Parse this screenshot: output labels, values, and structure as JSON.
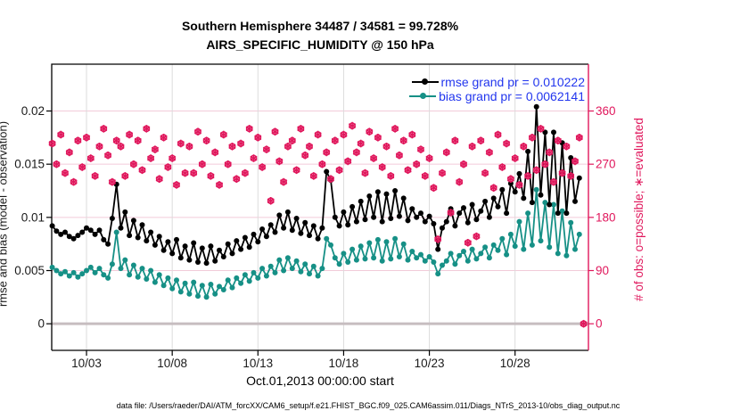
{
  "chart_data": {
    "type": "line",
    "title": "Southern Hemisphere 34487 / 34581 = 99.728%",
    "subtitle": "AIRS_SPECIFIC_HUMIDITY @ 150 hPa",
    "x_axis": {
      "lim": [
        0.97,
        32.28
      ],
      "ticks": [
        3,
        8,
        13,
        18,
        23,
        28
      ],
      "tick_labels": [
        "10/03",
        "10/08",
        "10/13",
        "10/18",
        "10/23",
        "10/28"
      ],
      "label": "Oct.01,2013 00:00:00 start"
    },
    "left_axis": {
      "lim": [
        -0.0025,
        0.0244
      ],
      "ticks": [
        0,
        0.005,
        0.01,
        0.015,
        0.02
      ],
      "tick_labels": [
        "0",
        "0.005",
        "0.01",
        "0.015",
        "0.02"
      ],
      "label": "rmse and bias (model - observation)"
    },
    "right_axis": {
      "lim": [
        -45,
        439.2
      ],
      "ticks": [
        0,
        90,
        180,
        270,
        360
      ],
      "tick_labels": [
        "0",
        "90",
        "180",
        "270",
        "360"
      ],
      "label": "# of obs: o=possible; ∗=evaluated",
      "color": "#E0175C"
    },
    "legend": [
      {
        "label": "rmse grand pr = 0.010222",
        "series": "rmse",
        "color": "#000000"
      },
      {
        "label": "bias grand pr = 0.0062141",
        "series": "bias",
        "color": "#169086"
      }
    ],
    "legend_text_color": "#2236EE",
    "grid": {
      "vertical_color": "#DCDCDC",
      "horizontal_color": "#F2CBD9",
      "zero_line_color": "#C6BDC0"
    },
    "x_start": 1.0,
    "x_step": 0.25,
    "obs_counts": [
      305,
      270,
      320,
      255,
      290,
      240,
      310,
      265,
      315,
      280,
      250,
      300,
      330,
      285,
      240,
      310,
      300,
      250,
      320,
      270,
      310,
      260,
      330,
      280,
      295,
      245,
      315,
      265,
      280,
      235,
      305,
      255,
      300,
      255,
      325,
      270,
      310,
      250,
      290,
      235,
      320,
      270,
      300,
      245,
      305,
      255,
      330,
      280,
      315,
      265,
      295,
      208,
      325,
      275,
      240,
      300,
      310,
      260,
      330,
      285,
      300,
      250,
      320,
      270,
      290,
      245,
      310,
      260,
      320,
      275,
      335,
      290,
      305,
      255,
      325,
      280,
      315,
      265,
      300,
      250,
      330,
      285,
      310,
      260,
      320,
      270,
      295,
      250,
      280,
      230,
      143,
      255,
      290,
      188,
      310,
      240,
      270,
      137,
      300,
      148,
      310,
      255,
      290,
      230,
      320,
      265,
      305,
      245,
      280,
      235,
      300,
      250,
      315,
      260,
      330,
      270,
      290,
      240,
      310,
      255,
      300,
      250,
      275,
      315,
      0
    ],
    "series": [
      {
        "name": "bias",
        "axis": "left",
        "color": "#169086",
        "marker": "dot",
        "values": [
          0.0053,
          0.005,
          0.0047,
          0.0049,
          0.0045,
          0.0048,
          0.0044,
          0.0047,
          0.005,
          0.0053,
          0.0048,
          0.0052,
          0.0046,
          0.0043,
          0.0056,
          0.0086,
          0.0052,
          0.006,
          0.0046,
          0.0055,
          0.0044,
          0.0052,
          0.0042,
          0.005,
          0.0039,
          0.0046,
          0.0036,
          0.0043,
          0.0033,
          0.0041,
          0.003,
          0.0038,
          0.0028,
          0.0039,
          0.0026,
          0.0036,
          0.0025,
          0.0037,
          0.0028,
          0.0035,
          0.0032,
          0.0041,
          0.0034,
          0.0043,
          0.0038,
          0.0046,
          0.004,
          0.0048,
          0.0043,
          0.0052,
          0.0045,
          0.0054,
          0.0048,
          0.006,
          0.005,
          0.0062,
          0.0052,
          0.0059,
          0.0049,
          0.0056,
          0.0047,
          0.0054,
          0.0045,
          0.0052,
          0.008,
          0.0074,
          0.0062,
          0.0056,
          0.0066,
          0.0058,
          0.007,
          0.006,
          0.0073,
          0.0061,
          0.0076,
          0.0062,
          0.0079,
          0.0059,
          0.0077,
          0.0061,
          0.008,
          0.0063,
          0.0075,
          0.006,
          0.0068,
          0.0062,
          0.0065,
          0.0059,
          0.0063,
          0.0058,
          0.0047,
          0.0055,
          0.0059,
          0.0066,
          0.0056,
          0.0064,
          0.0068,
          0.0059,
          0.007,
          0.0061,
          0.0066,
          0.0072,
          0.0062,
          0.0074,
          0.0069,
          0.008,
          0.0065,
          0.0084,
          0.0073,
          0.0096,
          0.007,
          0.0104,
          0.0074,
          0.0126,
          0.0078,
          0.0114,
          0.0072,
          0.0112,
          0.0066,
          0.0106,
          0.0064,
          0.0095,
          0.007,
          0.0084
        ]
      },
      {
        "name": "rmse",
        "axis": "left",
        "color": "#000000",
        "marker": "dot",
        "values": [
          0.0092,
          0.0087,
          0.0084,
          0.0086,
          0.0082,
          0.008,
          0.0083,
          0.0086,
          0.009,
          0.0088,
          0.0084,
          0.0088,
          0.0079,
          0.0075,
          0.0099,
          0.0131,
          0.009,
          0.0105,
          0.0083,
          0.0097,
          0.0081,
          0.0093,
          0.0078,
          0.0086,
          0.0074,
          0.0082,
          0.0069,
          0.0077,
          0.0066,
          0.0079,
          0.0062,
          0.0073,
          0.006,
          0.0076,
          0.0058,
          0.0071,
          0.0057,
          0.0073,
          0.0059,
          0.0069,
          0.0063,
          0.0075,
          0.0066,
          0.0078,
          0.007,
          0.0081,
          0.0072,
          0.0084,
          0.0077,
          0.0089,
          0.0082,
          0.0093,
          0.0086,
          0.0102,
          0.009,
          0.0105,
          0.0088,
          0.0099,
          0.0085,
          0.0095,
          0.0083,
          0.0092,
          0.008,
          0.009,
          0.0143,
          0.0135,
          0.01,
          0.0092,
          0.0105,
          0.0093,
          0.011,
          0.0096,
          0.0115,
          0.0098,
          0.012,
          0.01,
          0.0124,
          0.0096,
          0.0122,
          0.0099,
          0.0125,
          0.0101,
          0.0118,
          0.0097,
          0.0108,
          0.01,
          0.0104,
          0.0096,
          0.0101,
          0.0094,
          0.007,
          0.009,
          0.0096,
          0.0108,
          0.0092,
          0.0104,
          0.0109,
          0.0095,
          0.0112,
          0.0098,
          0.0106,
          0.0115,
          0.01,
          0.0118,
          0.011,
          0.0126,
          0.0104,
          0.0132,
          0.0124,
          0.0141,
          0.0118,
          0.0162,
          0.0114,
          0.0204,
          0.0121,
          0.018,
          0.0112,
          0.018,
          0.0104,
          0.017,
          0.0104,
          0.0156,
          0.0115,
          0.0137
        ]
      },
      {
        "name": "obs_possible",
        "axis": "right",
        "color": "#E0175C",
        "marker": "circle",
        "values_ref": "obs_counts"
      },
      {
        "name": "obs_evaluated",
        "axis": "right",
        "color": "#E0175C",
        "marker": "asterisk",
        "values_ref": "obs_counts"
      }
    ]
  },
  "footer": {
    "data_file": "data file: /Users/raeder/DAI/ATM_forcXX/CAM6_setup/f.e21.FHIST_BGC.f09_025.CAM6assim.011/Diags_NTrS_2013-10/obs_diag_output.nc"
  }
}
